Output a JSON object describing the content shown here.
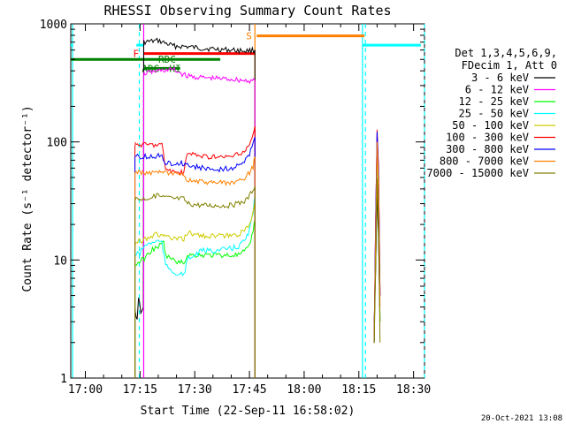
{
  "chart_data": {
    "type": "line",
    "title": "RHESSI Observing Summary Count Rates",
    "xlabel": "Start Time (22-Sep-11 16:58:02)",
    "ylabel": "Count Rate (s⁻¹ detector⁻¹)",
    "yscale": "log",
    "ylim": [
      1,
      1000
    ],
    "xlim_minutes": [
      -4,
      37
    ],
    "x_ticks": [
      {
        "label": "17:00",
        "m": 0
      },
      {
        "label": "17:15",
        "m": 15
      },
      {
        "label": "17:30",
        "m": 30
      },
      {
        "label": "17:45",
        "m": 45
      },
      {
        "label": "18:00",
        "m": 60
      },
      {
        "label": "18:15",
        "m": 75
      },
      {
        "label": "18:30",
        "m": 90
      }
    ],
    "y_ticks": [
      {
        "label": "1",
        "v": 1
      },
      {
        "label": "10",
        "v": 10
      },
      {
        "label": "100",
        "v": 100
      },
      {
        "label": "1000",
        "v": 1000
      }
    ],
    "legend": {
      "header": [
        "Det 1,3,4,5,6,9,",
        "FDecim 1, Att 0"
      ],
      "position": "right"
    },
    "series": [
      {
        "name": "3 - 6 keV",
        "color": "#000000",
        "points": [
          [
            13.6,
            4
          ],
          [
            14.2,
            3
          ],
          [
            14.6,
            5
          ],
          [
            15.2,
            3.5
          ],
          [
            15.9,
            4
          ],
          [
            16,
            700
          ],
          [
            20,
            720
          ],
          [
            24,
            650
          ],
          [
            28,
            640
          ],
          [
            32,
            620
          ],
          [
            36,
            610
          ],
          [
            40,
            600
          ],
          [
            44,
            590
          ],
          [
            46.5,
            600
          ]
        ],
        "points2": [
          [
            79.2,
            3
          ],
          [
            79.6,
            8
          ],
          [
            80,
            40
          ],
          [
            80.4,
            15
          ],
          [
            80.8,
            3
          ]
        ]
      },
      {
        "name": "6 - 12 keV",
        "color": "#ff00ff",
        "points": [
          [
            16,
            380
          ],
          [
            20,
            400
          ],
          [
            24,
            410
          ],
          [
            28,
            360
          ],
          [
            32,
            350
          ],
          [
            36,
            345
          ],
          [
            40,
            340
          ],
          [
            44,
            330
          ],
          [
            46.5,
            330
          ]
        ],
        "points2": [
          [
            79.2,
            2
          ],
          [
            79.6,
            20
          ],
          [
            80,
            120
          ],
          [
            80.4,
            60
          ],
          [
            80.8,
            5
          ]
        ]
      },
      {
        "name": "12 - 25 keV",
        "color": "#00ff00",
        "points": [
          [
            13.6,
            9
          ],
          [
            14.5,
            9.5
          ],
          [
            15.5,
            10
          ],
          [
            16.5,
            10.5
          ],
          [
            18,
            12
          ],
          [
            20,
            13
          ],
          [
            21.5,
            14
          ],
          [
            22,
            11
          ],
          [
            24,
            10
          ],
          [
            26,
            9.5
          ],
          [
            27,
            9.5
          ],
          [
            28,
            11
          ],
          [
            32,
            11
          ],
          [
            36,
            11
          ],
          [
            40,
            11
          ],
          [
            42,
            11
          ],
          [
            44,
            12
          ],
          [
            45,
            13
          ],
          [
            46,
            18
          ],
          [
            46.5,
            22
          ]
        ],
        "points2": [
          [
            79.2,
            2
          ],
          [
            79.6,
            15
          ],
          [
            80,
            80
          ],
          [
            80.4,
            30
          ],
          [
            80.8,
            3
          ]
        ]
      },
      {
        "name": "25 - 50 keV",
        "color": "#00ffff",
        "points": [
          [
            13.6,
            11
          ],
          [
            15,
            11.5
          ],
          [
            16,
            13
          ],
          [
            18,
            14
          ],
          [
            20,
            14.5
          ],
          [
            21,
            14
          ],
          [
            22,
            9
          ],
          [
            24,
            8
          ],
          [
            26,
            7.5
          ],
          [
            27,
            7.5
          ],
          [
            28,
            10
          ],
          [
            32,
            12
          ],
          [
            36,
            12
          ],
          [
            40,
            12.5
          ],
          [
            42,
            13
          ],
          [
            44,
            15
          ],
          [
            45,
            18
          ],
          [
            46,
            25
          ],
          [
            46.5,
            35
          ]
        ],
        "points2": [
          [
            79.2,
            2
          ],
          [
            79.6,
            12
          ],
          [
            80,
            70
          ],
          [
            80.4,
            25
          ],
          [
            80.8,
            3
          ]
        ]
      },
      {
        "name": "50 - 100 keV",
        "color": "#cccc00",
        "points": [
          [
            13.6,
            14
          ],
          [
            15,
            14.5
          ],
          [
            16,
            15
          ],
          [
            18,
            16
          ],
          [
            20,
            16.5
          ],
          [
            21,
            16
          ],
          [
            22,
            16
          ],
          [
            24,
            15
          ],
          [
            26,
            15
          ],
          [
            27,
            15
          ],
          [
            28,
            17
          ],
          [
            32,
            16
          ],
          [
            36,
            16
          ],
          [
            40,
            16
          ],
          [
            42,
            16.5
          ],
          [
            44,
            18
          ],
          [
            45,
            20
          ],
          [
            46,
            26
          ],
          [
            46.5,
            32
          ]
        ],
        "points2": [
          [
            79.2,
            2
          ],
          [
            79.6,
            15
          ],
          [
            80,
            90
          ],
          [
            80.4,
            30
          ],
          [
            80.8,
            3
          ]
        ]
      },
      {
        "name": "100 - 300 keV",
        "color": "#ff0000",
        "points": [
          [
            13.6,
            95
          ],
          [
            15,
            95
          ],
          [
            16,
            95
          ],
          [
            18,
            95
          ],
          [
            20,
            95
          ],
          [
            21,
            95
          ],
          [
            22,
            60
          ],
          [
            24,
            56
          ],
          [
            26,
            55
          ],
          [
            27,
            55
          ],
          [
            28,
            80
          ],
          [
            32,
            76
          ],
          [
            36,
            74
          ],
          [
            40,
            75
          ],
          [
            42,
            78
          ],
          [
            44,
            85
          ],
          [
            45,
            95
          ],
          [
            46,
            115
          ],
          [
            46.5,
            135
          ]
        ],
        "points2": [
          [
            79.2,
            2
          ],
          [
            79.6,
            20
          ],
          [
            80,
            130
          ],
          [
            80.4,
            60
          ],
          [
            80.8,
            5
          ]
        ]
      },
      {
        "name": "300 - 800 keV",
        "color": "#0000ff",
        "points": [
          [
            13.6,
            75
          ],
          [
            15,
            75
          ],
          [
            16,
            75
          ],
          [
            18,
            75
          ],
          [
            20,
            76
          ],
          [
            21,
            76
          ],
          [
            22,
            67
          ],
          [
            24,
            66
          ],
          [
            26,
            66
          ],
          [
            27,
            66
          ],
          [
            28,
            64
          ],
          [
            32,
            60
          ],
          [
            36,
            58
          ],
          [
            40,
            60
          ],
          [
            42,
            63
          ],
          [
            44,
            70
          ],
          [
            45,
            78
          ],
          [
            46,
            95
          ],
          [
            46.5,
            110
          ]
        ],
        "points2": [
          [
            79.2,
            2
          ],
          [
            79.6,
            20
          ],
          [
            80,
            120
          ],
          [
            80.4,
            55
          ],
          [
            80.8,
            5
          ]
        ]
      },
      {
        "name": "800 - 7000 keV",
        "color": "#ff8000",
        "points": [
          [
            13.6,
            55
          ],
          [
            15,
            55
          ],
          [
            16,
            55
          ],
          [
            18,
            55
          ],
          [
            20,
            55
          ],
          [
            21,
            55
          ],
          [
            22,
            54
          ],
          [
            24,
            53
          ],
          [
            26,
            52
          ],
          [
            27,
            52
          ],
          [
            28,
            48
          ],
          [
            32,
            46
          ],
          [
            36,
            45
          ],
          [
            40,
            45
          ],
          [
            42,
            46
          ],
          [
            44,
            50
          ],
          [
            45,
            55
          ],
          [
            46,
            62
          ],
          [
            46.5,
            75
          ]
        ],
        "points2": [
          [
            79.2,
            2
          ],
          [
            79.6,
            15
          ],
          [
            80,
            100
          ],
          [
            80.4,
            45
          ],
          [
            80.8,
            4
          ]
        ]
      },
      {
        "name": "7000 - 15000 keV",
        "color": "#808000",
        "points": [
          [
            13.6,
            33
          ],
          [
            15,
            33
          ],
          [
            16,
            33
          ],
          [
            18,
            34
          ],
          [
            20,
            35
          ],
          [
            21,
            34
          ],
          [
            22,
            34
          ],
          [
            24,
            33
          ],
          [
            26,
            33
          ],
          [
            27,
            33
          ],
          [
            28,
            30
          ],
          [
            32,
            29
          ],
          [
            36,
            29
          ],
          [
            40,
            29
          ],
          [
            42,
            30
          ],
          [
            44,
            32
          ],
          [
            45,
            35
          ],
          [
            46,
            40
          ],
          [
            46.5,
            42
          ]
        ],
        "points2": [
          [
            79.2,
            2
          ],
          [
            79.6,
            8
          ],
          [
            80,
            50
          ],
          [
            80.4,
            20
          ],
          [
            80.8,
            2
          ]
        ]
      }
    ],
    "flags": [
      {
        "label": "F",
        "color": "#ff0000",
        "start": 16,
        "end": 46.5,
        "y": 560
      },
      {
        "label": "S",
        "color": "#ff8000",
        "start": 47,
        "end": 76.5,
        "y": 790
      },
      {
        "label": "RDC",
        "color": "#008000",
        "start": -4,
        "end": 37,
        "y": 500
      },
      {
        "label": "SAA",
        "color": "#00ffff",
        "start": -4,
        "end": -3.5,
        "y": 660
      },
      {
        "label": "SAA",
        "color": "#00ffff",
        "start": 14,
        "end": 16,
        "y": 660
      },
      {
        "label": "SAA",
        "color": "#00ffff",
        "start": 76,
        "end": 92,
        "y": 660
      },
      {
        "label": "ADG",
        "color": "#008000",
        "start": 16,
        "end": 20,
        "y": 420
      },
      {
        "label": "HI",
        "color": "#008000",
        "start": 20,
        "end": 26,
        "y": 420
      }
    ],
    "markers": [
      {
        "m": 16,
        "color": "#ff00ff",
        "style": "solid"
      },
      {
        "m": 46.5,
        "color": "#ff8000",
        "style": "solid"
      },
      {
        "m": -3.5,
        "color": "#00ffff",
        "style": "solid"
      },
      {
        "m": 14.8,
        "color": "#00ffff",
        "style": "dashed"
      },
      {
        "m": 76,
        "color": "#00ffff",
        "style": "solid"
      },
      {
        "m": 76.8,
        "color": "#00ffff",
        "style": "dashed"
      },
      {
        "m": 93,
        "color": "#00ffff",
        "style": "dashed"
      }
    ],
    "flag_labels": {
      "F": "F",
      "S": "S",
      "RDC": "RDC",
      "ADG": "ADG",
      "HI": "HI"
    },
    "timestamp": "20-Oct-2021 13:08"
  }
}
